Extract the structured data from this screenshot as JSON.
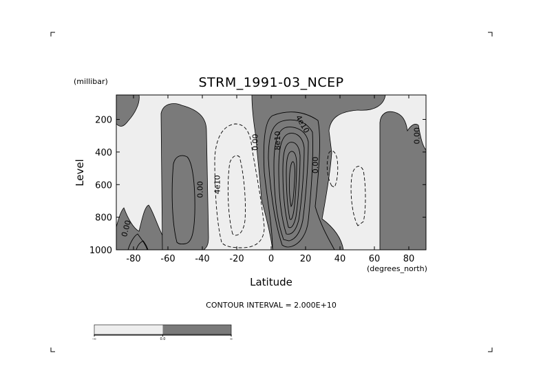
{
  "chart_data": {
    "type": "contour",
    "title": "STRM_1991-03_NCEP",
    "xlabel": "Latitude",
    "x_units": "(degrees_north)",
    "ylabel": "Level",
    "y_units": "(millibar)",
    "xlim": [
      -90,
      90
    ],
    "ylim": [
      1000,
      50
    ],
    "xticks": [
      -80,
      -60,
      -40,
      -20,
      0,
      20,
      40,
      60,
      80
    ],
    "yticks": [
      200,
      400,
      600,
      800,
      1000
    ],
    "contour_interval": 20000000000,
    "contour_interval_text": "CONTOUR INTERVAL = 2.000E+10",
    "contour_labels": [
      {
        "text": "0.00",
        "lat": -84,
        "lev": 870,
        "rot": -75
      },
      {
        "text": "0.00",
        "lat": -41,
        "lev": 630,
        "rot": -90
      },
      {
        "text": "4e10",
        "lat": -31,
        "lev": 600,
        "rot": -90
      },
      {
        "text": "0.00",
        "lat": -9,
        "lev": 340,
        "rot": -90
      },
      {
        "text": "8e10",
        "lat": 4,
        "lev": 330,
        "rot": -90
      },
      {
        "text": "4e10",
        "lat": 18,
        "lev": 230,
        "rot": 60
      },
      {
        "text": "0.00",
        "lat": 26,
        "lev": 480,
        "rot": -90
      },
      {
        "text": "0.00",
        "lat": 85,
        "lev": 300,
        "rot": -90
      }
    ],
    "colorbar": {
      "fills": [
        "#eeeeee",
        "#7a7a7a"
      ],
      "labels": [
        "-∞",
        "0.0",
        "∞"
      ]
    },
    "colors": {
      "positive": "#7a7a7a",
      "negative": "#eeeeee"
    }
  }
}
